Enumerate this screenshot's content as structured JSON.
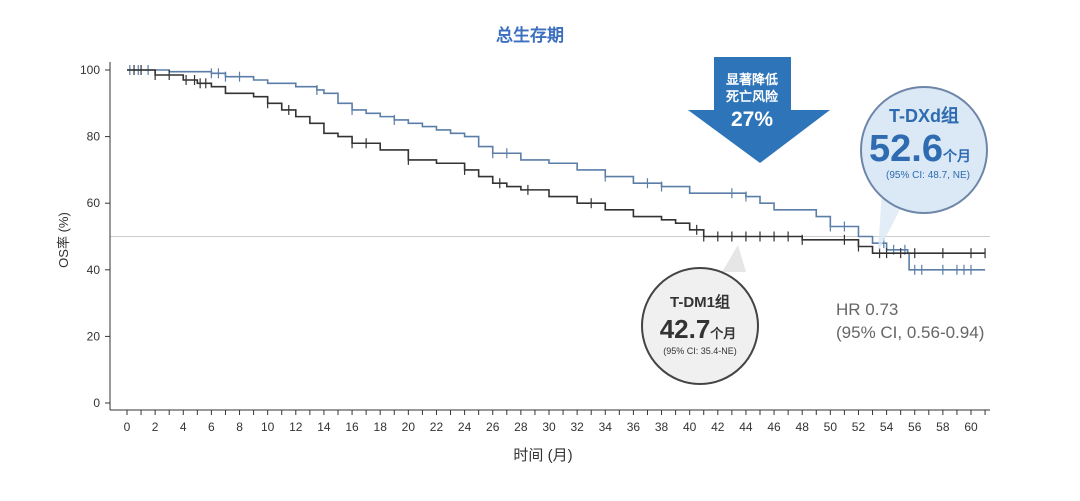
{
  "chart_data": {
    "type": "line",
    "subtype": "kaplan-meier",
    "title": "总生存期",
    "xlabel": "时间 (月)",
    "ylabel": "OS率 (%)",
    "xlim": [
      0,
      61
    ],
    "ylim": [
      0,
      100
    ],
    "xticks": [
      0,
      2,
      4,
      6,
      8,
      10,
      12,
      14,
      16,
      18,
      20,
      22,
      24,
      26,
      28,
      30,
      32,
      34,
      36,
      38,
      40,
      42,
      44,
      46,
      48,
      50,
      52,
      54,
      56,
      58,
      60
    ],
    "yticks": [
      0,
      20,
      40,
      60,
      80,
      100
    ],
    "reference_line_y": 50,
    "grid": false,
    "colors": {
      "tdxd": "#5b7ea8",
      "tdm1": "#333333",
      "accent": "#2e74b8",
      "title": "#3d6fc0"
    },
    "series": [
      {
        "color": "#5b7ea8",
        "points": [
          [
            0,
            100
          ],
          [
            3,
            99.5
          ],
          [
            6,
            99
          ],
          [
            7,
            98
          ],
          [
            9,
            97
          ],
          [
            10,
            96
          ],
          [
            12,
            95
          ],
          [
            13.5,
            94
          ],
          [
            14,
            93
          ],
          [
            15,
            90
          ],
          [
            16,
            88
          ],
          [
            17,
            87
          ],
          [
            18,
            86
          ],
          [
            19,
            85
          ],
          [
            20,
            84
          ],
          [
            21,
            83
          ],
          [
            22,
            82
          ],
          [
            23,
            81
          ],
          [
            24,
            80
          ],
          [
            25,
            77
          ],
          [
            26,
            75
          ],
          [
            28,
            73
          ],
          [
            30,
            72
          ],
          [
            32,
            70
          ],
          [
            34,
            68
          ],
          [
            36,
            66
          ],
          [
            38,
            65
          ],
          [
            40,
            63
          ],
          [
            44,
            62
          ],
          [
            45,
            60
          ],
          [
            46,
            58
          ],
          [
            49,
            56
          ],
          [
            50,
            53
          ],
          [
            52,
            50
          ],
          [
            53,
            48
          ],
          [
            54,
            46
          ],
          [
            55.5,
            45
          ],
          [
            55.6,
            40
          ],
          [
            61,
            40
          ]
        ],
        "censored": [
          0.2,
          0.8,
          1.5,
          6,
          6.5,
          7,
          8,
          13.5,
          16,
          19,
          26,
          27,
          34,
          37,
          38,
          43,
          44,
          50,
          51,
          53.8,
          54.5,
          55.3,
          56,
          56.5,
          58,
          59,
          59.5,
          60
        ]
      },
      {
        "color": "#333333",
        "points": [
          [
            0,
            100
          ],
          [
            2,
            98.5
          ],
          [
            4,
            97
          ],
          [
            5,
            96
          ],
          [
            6,
            95
          ],
          [
            7,
            93
          ],
          [
            9,
            92
          ],
          [
            10,
            90
          ],
          [
            11,
            88
          ],
          [
            12,
            86
          ],
          [
            13,
            84
          ],
          [
            14,
            81
          ],
          [
            15,
            80
          ],
          [
            16,
            78
          ],
          [
            18,
            76
          ],
          [
            20,
            73
          ],
          [
            22,
            72
          ],
          [
            24,
            70
          ],
          [
            25,
            68
          ],
          [
            26,
            66
          ],
          [
            27,
            65
          ],
          [
            28,
            64
          ],
          [
            30,
            62
          ],
          [
            32,
            60
          ],
          [
            34,
            58
          ],
          [
            36,
            56
          ],
          [
            38,
            55
          ],
          [
            39,
            54
          ],
          [
            40,
            52
          ],
          [
            41,
            50
          ],
          [
            48,
            49
          ],
          [
            52,
            47
          ],
          [
            53,
            45
          ],
          [
            61,
            45
          ]
        ],
        "censored": [
          0.5,
          1,
          2,
          3,
          4.2,
          4.8,
          5.2,
          5.6,
          10,
          11.5,
          16,
          17,
          20,
          24,
          26.5,
          28.5,
          33,
          40.5,
          41,
          42,
          43,
          44,
          45,
          46,
          47,
          48,
          51,
          52,
          53.5,
          54,
          55,
          56,
          58,
          60,
          61
        ]
      }
    ],
    "annotations": {
      "arrow": {
        "line1": "显著降低",
        "line2": "死亡风险",
        "value": "27%"
      },
      "tdxd": {
        "group": "T-DXd组",
        "median": "52.6",
        "unit": "个月",
        "ci": "(95% CI: 48.7, NE)"
      },
      "tdm1": {
        "group": "T-DM1组",
        "median": "42.7",
        "unit": "个月",
        "ci": "(95% CI: 35.4-NE)"
      },
      "hr": {
        "line1": "HR 0.73",
        "line2": "(95% CI, 0.56-0.94)"
      }
    }
  }
}
